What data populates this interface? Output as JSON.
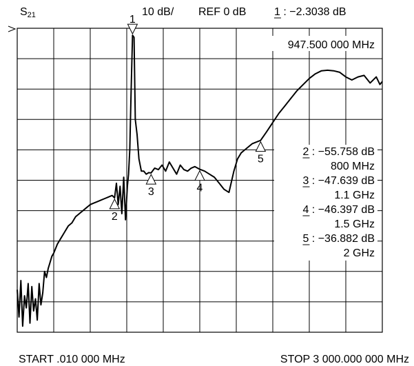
{
  "param": "S",
  "param_sub": "21",
  "scale": "10 dB/",
  "ref": "REF 0 dB",
  "start": "START .010 000 MHz",
  "stop": "STOP 3 000.000 000 MHz",
  "marker1": {
    "num": "1",
    "sep": " : ",
    "value": "−2.3038 dB",
    "freq": "947.500 000 MHz"
  },
  "markers": [
    {
      "num": "2",
      "value": "−55.758 dB",
      "freq": "800 MHz"
    },
    {
      "num": "3",
      "value": "−47.639 dB",
      "freq": "1.1 GHz"
    },
    {
      "num": "4",
      "value": "−46.397 dB",
      "freq": "1.5 GHz"
    },
    {
      "num": "5",
      "value": "−36.882 dB",
      "freq": "2 GHz"
    }
  ],
  "chart_data": {
    "type": "line",
    "x_unit": "MHz",
    "y_unit": "dB",
    "xlim": [
      0.01,
      3000
    ],
    "ylim": [
      -100,
      0
    ],
    "x_divisions": 10,
    "y_divisions": 10,
    "grid": true,
    "series": [
      {
        "x": [
          0.01,
          15,
          30,
          45,
          60,
          75,
          90,
          105,
          120,
          135,
          150,
          165,
          180,
          195,
          210,
          225,
          240,
          255,
          270,
          285,
          300,
          330,
          360,
          390,
          420,
          450,
          480,
          510,
          540,
          570,
          600,
          630,
          660,
          690,
          720,
          750,
          780,
          800,
          815,
          830,
          845,
          860,
          875,
          890,
          905,
          915,
          925,
          935,
          947.5,
          960,
          970,
          985,
          1000,
          1020,
          1040,
          1060,
          1080,
          1100,
          1130,
          1160,
          1190,
          1220,
          1250,
          1280,
          1310,
          1340,
          1370,
          1400,
          1430,
          1460,
          1500,
          1540,
          1580,
          1620,
          1660,
          1700,
          1740,
          1780,
          1810,
          1840,
          1870,
          1900,
          1930,
          1960,
          2000,
          2050,
          2100,
          2150,
          2200,
          2250,
          2300,
          2350,
          2400,
          2450,
          2500,
          2550,
          2600,
          2650,
          2700,
          2750,
          2800,
          2850,
          2900,
          2950,
          2980,
          3000
        ],
        "y": [
          -86,
          -95,
          -83,
          -98,
          -88,
          -92,
          -84,
          -97,
          -85,
          -93,
          -89,
          -96,
          -84,
          -91,
          -87,
          -80,
          -82,
          -79,
          -77,
          -75,
          -74,
          -71,
          -69,
          -67,
          -65,
          -64,
          -62,
          -61,
          -60,
          -59,
          -58,
          -57.5,
          -57,
          -56.5,
          -56,
          -55.5,
          -55,
          -55.8,
          -51,
          -58,
          -52,
          -61,
          -49,
          -63,
          -52,
          -48,
          -40,
          -22,
          -2.3,
          -3,
          -30,
          -35,
          -43,
          -47,
          -47,
          -48,
          -47.5,
          -47.6,
          -46,
          -46.5,
          -45,
          -47,
          -44,
          -46,
          -48,
          -45,
          -46.5,
          -47,
          -46,
          -45.5,
          -46.4,
          -47,
          -48,
          -49,
          -51,
          -53,
          -54,
          -47,
          -43,
          -41,
          -40,
          -39,
          -38,
          -37.5,
          -36.9,
          -34,
          -31,
          -28,
          -25.5,
          -23,
          -20.5,
          -18.5,
          -16.5,
          -15,
          -14,
          -13.8,
          -14,
          -14.5,
          -16,
          -17,
          -16,
          -15.5,
          -18,
          -16,
          -18.5,
          -17.5
        ]
      }
    ],
    "markers": [
      {
        "id": "1",
        "x": 947.5,
        "y": -2.3038
      },
      {
        "id": "2",
        "x": 800,
        "y": -55.758
      },
      {
        "id": "3",
        "x": 1100,
        "y": -47.639
      },
      {
        "id": "4",
        "x": 1500,
        "y": -46.397
      },
      {
        "id": "5",
        "x": 2000,
        "y": -36.882
      }
    ]
  }
}
